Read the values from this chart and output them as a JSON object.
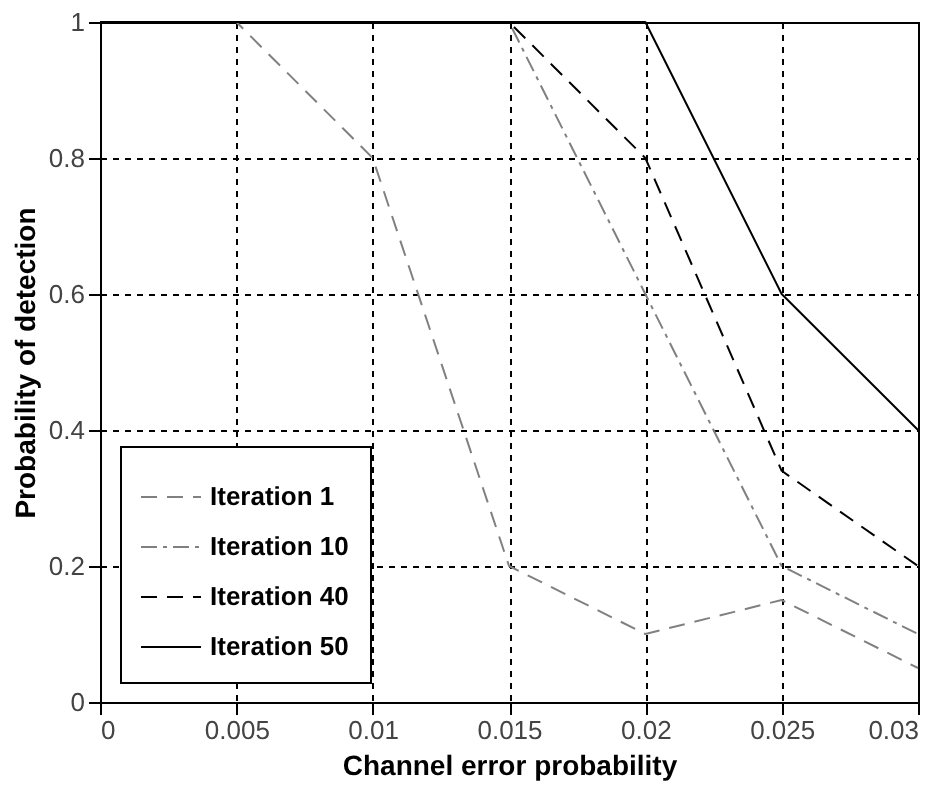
{
  "chart_data": {
    "type": "line",
    "xlabel": "Channel error probability",
    "ylabel": "Probability of detection",
    "x": [
      0,
      0.005,
      0.01,
      0.015,
      0.02,
      0.025,
      0.03
    ],
    "series": [
      {
        "name": "Iteration 1",
        "color": "#808080",
        "line_style": "dashed",
        "values": [
          1,
          1,
          0.8,
          0.2,
          0.1,
          0.15,
          0.05
        ]
      },
      {
        "name": "Iteration 10",
        "color": "#808080",
        "line_style": "dashdot",
        "values": [
          1,
          1,
          1,
          1,
          0.6,
          0.2,
          0.1
        ]
      },
      {
        "name": "Iteration 40",
        "color": "#000000",
        "line_style": "dashed",
        "values": [
          1,
          1,
          1,
          1,
          0.8,
          0.34,
          0.2
        ]
      },
      {
        "name": "Iteration 50",
        "color": "#000000",
        "line_style": "solid",
        "values": [
          1,
          1,
          1,
          1,
          1,
          0.6,
          0.4
        ]
      }
    ],
    "xlim": [
      0,
      0.03
    ],
    "xticks": [
      0,
      0.005,
      0.01,
      0.015,
      0.02,
      0.025,
      0.03
    ],
    "ylim": [
      0,
      1
    ],
    "yticks": [
      0,
      0.2,
      0.4,
      0.6,
      0.8,
      1
    ],
    "grid": true,
    "legend": "bottom left",
    "marker": "none"
  }
}
